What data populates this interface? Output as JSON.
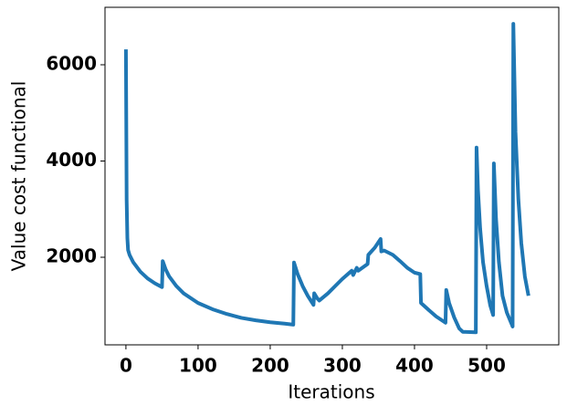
{
  "chart_data": {
    "type": "line",
    "x_label": "Iterations",
    "y_label": "Value cost functional",
    "x": [
      0,
      1,
      2,
      3,
      5,
      10,
      20,
      30,
      40,
      50,
      51,
      55,
      60,
      70,
      80,
      100,
      120,
      140,
      160,
      180,
      200,
      220,
      232,
      233,
      238,
      245,
      252,
      260,
      261,
      265,
      268,
      280,
      290,
      300,
      313,
      315,
      318,
      320,
      322,
      335,
      336,
      345,
      353,
      354,
      358,
      370,
      380,
      390,
      400,
      408,
      409,
      420,
      430,
      443,
      444,
      448,
      455,
      462,
      467,
      485,
      486,
      488,
      491,
      495,
      500,
      505,
      509,
      510,
      513,
      517,
      522,
      528,
      535,
      536,
      537,
      540,
      544,
      548,
      553,
      558
    ],
    "series": [
      {
        "color": "#1f77b4",
        "values": [
          6320,
          3200,
          2400,
          2150,
          2050,
          1900,
          1700,
          1560,
          1460,
          1380,
          1920,
          1750,
          1600,
          1400,
          1250,
          1050,
          920,
          820,
          740,
          690,
          650,
          620,
          600,
          1890,
          1650,
          1400,
          1200,
          1010,
          1250,
          1150,
          1100,
          1250,
          1400,
          1550,
          1720,
          1630,
          1720,
          1780,
          1720,
          1860,
          2050,
          2200,
          2380,
          2120,
          2140,
          2050,
          1920,
          1780,
          1680,
          1650,
          1050,
          900,
          770,
          640,
          1320,
          1050,
          750,
          520,
          450,
          440,
          4280,
          3400,
          2600,
          1900,
          1400,
          1000,
          800,
          3950,
          2800,
          1900,
          1200,
          850,
          600,
          560,
          6850,
          4600,
          3200,
          2300,
          1600,
          1200
        ]
      }
    ],
    "xlim": [
      -29,
      600
    ],
    "ylim": [
      180,
      7194
    ],
    "xticks": [
      0,
      100,
      200,
      300,
      400,
      500
    ],
    "yticks": [
      2000,
      4000,
      6000
    ]
  }
}
